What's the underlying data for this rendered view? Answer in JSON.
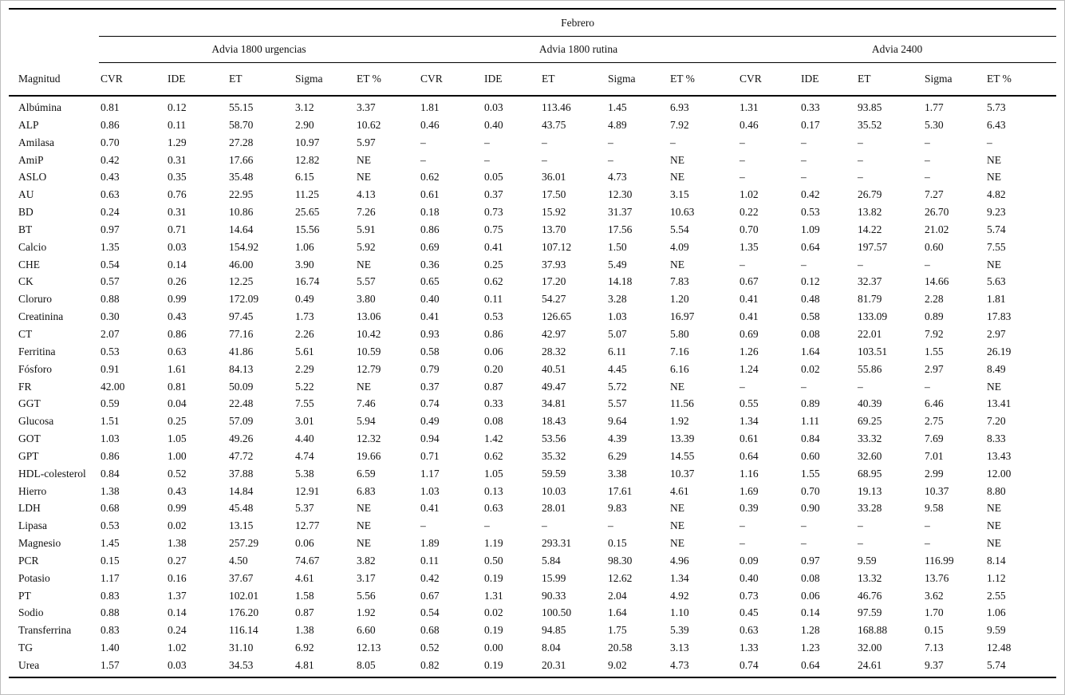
{
  "table": {
    "title": "Febrero",
    "label_column_header": "Magnitud",
    "groups": [
      {
        "label": "Advia 1800 urgencias"
      },
      {
        "label": "Advia 1800 rutina"
      },
      {
        "label": "Advia 2400"
      }
    ],
    "sub_columns": [
      "CVR",
      "IDE",
      "ET",
      "Sigma",
      "ET %"
    ],
    "rows": [
      {
        "label": "Albúmina",
        "values": [
          "0.81",
          "0.12",
          "55.15",
          "3.12",
          "3.37",
          "1.81",
          "0.03",
          "113.46",
          "1.45",
          "6.93",
          "1.31",
          "0.33",
          "93.85",
          "1.77",
          "5.73"
        ]
      },
      {
        "label": "ALP",
        "values": [
          "0.86",
          "0.11",
          "58.70",
          "2.90",
          "10.62",
          "0.46",
          "0.40",
          "43.75",
          "4.89",
          "7.92",
          "0.46",
          "0.17",
          "35.52",
          "5.30",
          "6.43"
        ]
      },
      {
        "label": "Amilasa",
        "values": [
          "0.70",
          "1.29",
          "27.28",
          "10.97",
          "5.97",
          "–",
          "–",
          "–",
          "–",
          "–",
          "–",
          "–",
          "–",
          "–",
          "–"
        ]
      },
      {
        "label": "AmiP",
        "values": [
          "0.42",
          "0.31",
          "17.66",
          "12.82",
          "NE",
          "–",
          "–",
          "–",
          "–",
          "NE",
          "–",
          "–",
          "–",
          "–",
          "NE"
        ]
      },
      {
        "label": "ASLO",
        "values": [
          "0.43",
          "0.35",
          "35.48",
          "6.15",
          "NE",
          "0.62",
          "0.05",
          "36.01",
          "4.73",
          "NE",
          "–",
          "–",
          "–",
          "–",
          "NE"
        ]
      },
      {
        "label": "AU",
        "values": [
          "0.63",
          "0.76",
          "22.95",
          "11.25",
          "4.13",
          "0.61",
          "0.37",
          "17.50",
          "12.30",
          "3.15",
          "1.02",
          "0.42",
          "26.79",
          "7.27",
          "4.82"
        ]
      },
      {
        "label": "BD",
        "values": [
          "0.24",
          "0.31",
          "10.86",
          "25.65",
          "7.26",
          "0.18",
          "0.73",
          "15.92",
          "31.37",
          "10.63",
          "0.22",
          "0.53",
          "13.82",
          "26.70",
          "9.23"
        ]
      },
      {
        "label": "BT",
        "values": [
          "0.97",
          "0.71",
          "14.64",
          "15.56",
          "5.91",
          "0.86",
          "0.75",
          "13.70",
          "17.56",
          "5.54",
          "0.70",
          "1.09",
          "14.22",
          "21.02",
          "5.74"
        ]
      },
      {
        "label": "Calcio",
        "values": [
          "1.35",
          "0.03",
          "154.92",
          "1.06",
          "5.92",
          "0.69",
          "0.41",
          "107.12",
          "1.50",
          "4.09",
          "1.35",
          "0.64",
          "197.57",
          "0.60",
          "7.55"
        ]
      },
      {
        "label": "CHE",
        "values": [
          "0.54",
          "0.14",
          "46.00",
          "3.90",
          "NE",
          "0.36",
          "0.25",
          "37.93",
          "5.49",
          "NE",
          "–",
          "–",
          "–",
          "–",
          "NE"
        ]
      },
      {
        "label": "CK",
        "values": [
          "0.57",
          "0.26",
          "12.25",
          "16.74",
          "5.57",
          "0.65",
          "0.62",
          "17.20",
          "14.18",
          "7.83",
          "0.67",
          "0.12",
          "32.37",
          "14.66",
          "5.63"
        ]
      },
      {
        "label": "Cloruro",
        "values": [
          "0.88",
          "0.99",
          "172.09",
          "0.49",
          "3.80",
          "0.40",
          "0.11",
          "54.27",
          "3.28",
          "1.20",
          "0.41",
          "0.48",
          "81.79",
          "2.28",
          "1.81"
        ]
      },
      {
        "label": "Creatinina",
        "values": [
          "0.30",
          "0.43",
          "97.45",
          "1.73",
          "13.06",
          "0.41",
          "0.53",
          "126.65",
          "1.03",
          "16.97",
          "0.41",
          "0.58",
          "133.09",
          "0.89",
          "17.83"
        ]
      },
      {
        "label": "CT",
        "values": [
          "2.07",
          "0.86",
          "77.16",
          "2.26",
          "10.42",
          "0.93",
          "0.86",
          "42.97",
          "5.07",
          "5.80",
          "0.69",
          "0.08",
          "22.01",
          "7.92",
          "2.97"
        ]
      },
      {
        "label": "Ferritina",
        "values": [
          "0.53",
          "0.63",
          "41.86",
          "5.61",
          "10.59",
          "0.58",
          "0.06",
          "28.32",
          "6.11",
          "7.16",
          "1.26",
          "1.64",
          "103.51",
          "1.55",
          "26.19"
        ]
      },
      {
        "label": "Fósforo",
        "values": [
          "0.91",
          "1.61",
          "84.13",
          "2.29",
          "12.79",
          "0.79",
          "0.20",
          "40.51",
          "4.45",
          "6.16",
          "1.24",
          "0.02",
          "55.86",
          "2.97",
          "8.49"
        ]
      },
      {
        "label": "FR",
        "values": [
          "42.00",
          "0.81",
          "50.09",
          "5.22",
          "NE",
          "0.37",
          "0.87",
          "49.47",
          "5.72",
          "NE",
          "–",
          "–",
          "–",
          "–",
          "NE"
        ]
      },
      {
        "label": "GGT",
        "values": [
          "0.59",
          "0.04",
          "22.48",
          "7.55",
          "7.46",
          "0.74",
          "0.33",
          "34.81",
          "5.57",
          "11.56",
          "0.55",
          "0.89",
          "40.39",
          "6.46",
          "13.41"
        ]
      },
      {
        "label": "Glucosa",
        "values": [
          "1.51",
          "0.25",
          "57.09",
          "3.01",
          "5.94",
          "0.49",
          "0.08",
          "18.43",
          "9.64",
          "1.92",
          "1.34",
          "1.11",
          "69.25",
          "2.75",
          "7.20"
        ]
      },
      {
        "label": "GOT",
        "values": [
          "1.03",
          "1.05",
          "49.26",
          "4.40",
          "12.32",
          "0.94",
          "1.42",
          "53.56",
          "4.39",
          "13.39",
          "0.61",
          "0.84",
          "33.32",
          "7.69",
          "8.33"
        ]
      },
      {
        "label": "GPT",
        "values": [
          "0.86",
          "1.00",
          "47.72",
          "4.74",
          "19.66",
          "0.71",
          "0.62",
          "35.32",
          "6.29",
          "14.55",
          "0.64",
          "0.60",
          "32.60",
          "7.01",
          "13.43"
        ]
      },
      {
        "label": "HDL-colesterol",
        "values": [
          "0.84",
          "0.52",
          "37.88",
          "5.38",
          "6.59",
          "1.17",
          "1.05",
          "59.59",
          "3.38",
          "10.37",
          "1.16",
          "1.55",
          "68.95",
          "2.99",
          "12.00"
        ]
      },
      {
        "label": "Hierro",
        "values": [
          "1.38",
          "0.43",
          "14.84",
          "12.91",
          "6.83",
          "1.03",
          "0.13",
          "10.03",
          "17.61",
          "4.61",
          "1.69",
          "0.70",
          "19.13",
          "10.37",
          "8.80"
        ]
      },
      {
        "label": "LDH",
        "values": [
          "0.68",
          "0.99",
          "45.48",
          "5.37",
          "NE",
          "0.41",
          "0.63",
          "28.01",
          "9.83",
          "NE",
          "0.39",
          "0.90",
          "33.28",
          "9.58",
          "NE"
        ]
      },
      {
        "label": "Lipasa",
        "values": [
          "0.53",
          "0.02",
          "13.15",
          "12.77",
          "NE",
          "–",
          "–",
          "–",
          "–",
          "NE",
          "–",
          "–",
          "–",
          "–",
          "NE"
        ]
      },
      {
        "label": "Magnesio",
        "values": [
          "1.45",
          "1.38",
          "257.29",
          "0.06",
          "NE",
          "1.89",
          "1.19",
          "293.31",
          "0.15",
          "NE",
          "–",
          "–",
          "–",
          "–",
          "NE"
        ]
      },
      {
        "label": "PCR",
        "values": [
          "0.15",
          "0.27",
          "4.50",
          "74.67",
          "3.82",
          "0.11",
          "0.50",
          "5.84",
          "98.30",
          "4.96",
          "0.09",
          "0.97",
          "9.59",
          "116.99",
          "8.14"
        ]
      },
      {
        "label": "Potasio",
        "values": [
          "1.17",
          "0.16",
          "37.67",
          "4.61",
          "3.17",
          "0.42",
          "0.19",
          "15.99",
          "12.62",
          "1.34",
          "0.40",
          "0.08",
          "13.32",
          "13.76",
          "1.12"
        ]
      },
      {
        "label": "PT",
        "values": [
          "0.83",
          "1.37",
          "102.01",
          "1.58",
          "5.56",
          "0.67",
          "1.31",
          "90.33",
          "2.04",
          "4.92",
          "0.73",
          "0.06",
          "46.76",
          "3.62",
          "2.55"
        ]
      },
      {
        "label": "Sodio",
        "values": [
          "0.88",
          "0.14",
          "176.20",
          "0.87",
          "1.92",
          "0.54",
          "0.02",
          "100.50",
          "1.64",
          "1.10",
          "0.45",
          "0.14",
          "97.59",
          "1.70",
          "1.06"
        ]
      },
      {
        "label": "Transferrina",
        "values": [
          "0.83",
          "0.24",
          "116.14",
          "1.38",
          "6.60",
          "0.68",
          "0.19",
          "94.85",
          "1.75",
          "5.39",
          "0.63",
          "1.28",
          "168.88",
          "0.15",
          "9.59"
        ]
      },
      {
        "label": "TG",
        "values": [
          "1.40",
          "1.02",
          "31.10",
          "6.92",
          "12.13",
          "0.52",
          "0.00",
          "8.04",
          "20.58",
          "3.13",
          "1.33",
          "1.23",
          "32.00",
          "7.13",
          "12.48"
        ]
      },
      {
        "label": "Urea",
        "values": [
          "1.57",
          "0.03",
          "34.53",
          "4.81",
          "8.05",
          "0.82",
          "0.19",
          "20.31",
          "9.02",
          "4.73",
          "0.74",
          "0.64",
          "24.61",
          "9.37",
          "5.74"
        ]
      }
    ]
  },
  "colors": {
    "rule": "#000000",
    "outer_border": "#bdbdbd",
    "text": "#111111",
    "background": "#ffffff"
  }
}
